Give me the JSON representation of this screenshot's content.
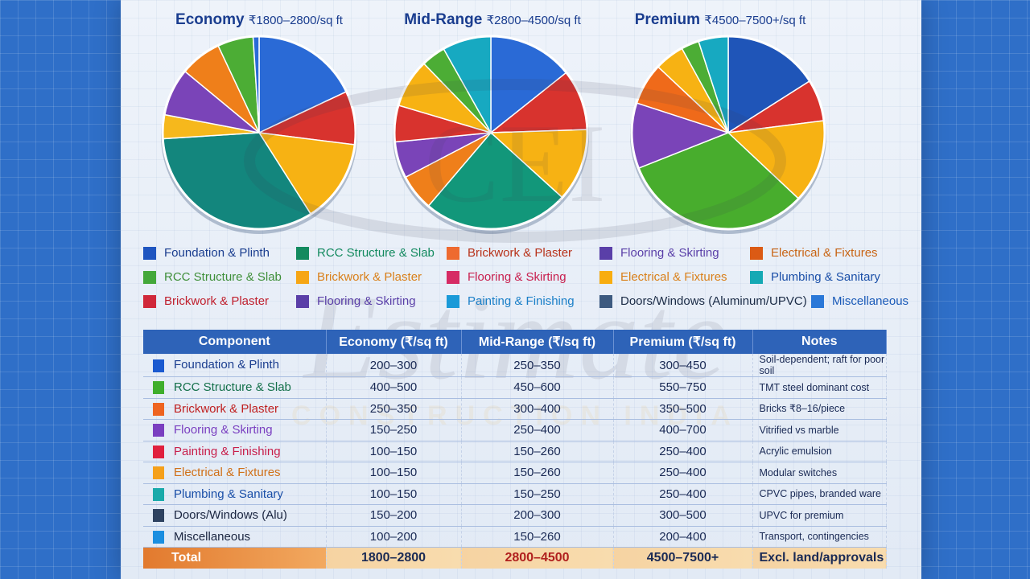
{
  "chart_data": [
    {
      "type": "pie",
      "title": "Economy",
      "subtitle": "₹1800–2800/sq ft",
      "slices": [
        {
          "value": 18,
          "color": "#2a6ad6"
        },
        {
          "value": 9,
          "color": "#d8332e"
        },
        {
          "value": 14,
          "color": "#f7b213"
        },
        {
          "value": 33,
          "color": "#13867d"
        },
        {
          "value": 4,
          "color": "#f6b81c"
        },
        {
          "value": 8,
          "color": "#7a44b8"
        },
        {
          "value": 7,
          "color": "#ef7f1a"
        },
        {
          "value": 6,
          "color": "#4cad35"
        },
        {
          "value": 1,
          "color": "#2a6ad6"
        }
      ]
    },
    {
      "type": "pie",
      "title": "Mid-Range",
      "subtitle": "₹2800–4500/sq ft",
      "slices": [
        {
          "value": 14,
          "color": "#2a6ad6"
        },
        {
          "value": 10,
          "color": "#d8332e"
        },
        {
          "value": 12,
          "color": "#f7b213"
        },
        {
          "value": 24,
          "color": "#12977a"
        },
        {
          "value": 6,
          "color": "#ef7f1a"
        },
        {
          "value": 6,
          "color": "#7a44b8"
        },
        {
          "value": 6,
          "color": "#d8332e"
        },
        {
          "value": 8,
          "color": "#f7b213"
        },
        {
          "value": 4,
          "color": "#4cad35"
        },
        {
          "value": 8,
          "color": "#17a9c1"
        }
      ]
    },
    {
      "type": "pie",
      "title": "Premium",
      "subtitle": "₹4500–7500+/sq ft",
      "slices": [
        {
          "value": 16,
          "color": "#1f55b8"
        },
        {
          "value": 7,
          "color": "#d8332e"
        },
        {
          "value": 14,
          "color": "#f7b213"
        },
        {
          "value": 32,
          "color": "#48ad2d"
        },
        {
          "value": 11,
          "color": "#7a44b8"
        },
        {
          "value": 7,
          "color": "#ef6a1a"
        },
        {
          "value": 5,
          "color": "#f7b213"
        },
        {
          "value": 3,
          "color": "#4cad35"
        },
        {
          "value": 5,
          "color": "#17a9c1"
        }
      ]
    }
  ],
  "legend": [
    {
      "label": "Foundation & Plinth",
      "color": "#1f55c0",
      "text": "#1a3d8f"
    },
    {
      "label": "RCC Structure & Slab",
      "color": "#138a5f",
      "text": "#138a5f"
    },
    {
      "label": "Brickwork & Plaster",
      "color": "#ee6a30",
      "text": "#b8321a"
    },
    {
      "label": "Flooring & Skirting",
      "color": "#5a3fa8",
      "text": "#5a3fa8"
    },
    {
      "label": "Electrical & Fixtures",
      "color": "#db5a14",
      "text": "#c86414"
    },
    {
      "label": "RCC Structure & Slab",
      "color": "#44a83a",
      "text": "#3f8f3a"
    },
    {
      "label": "Brickwork & Plaster",
      "color": "#f6a615",
      "text": "#d9801a"
    },
    {
      "label": "Flooring & Skirting",
      "color": "#d62b64",
      "text": "#c8204f"
    },
    {
      "label": "Electrical & Fixtures",
      "color": "#f8ad0f",
      "text": "#d9801a"
    },
    {
      "label": "Plumbing & Sanitary",
      "color": "#15a9b4",
      "text": "#1a4fa8"
    },
    {
      "label": "Brickwork & Plaster",
      "color": "#d0283a",
      "text": "#c0202e"
    },
    {
      "label": "Flooring & Skirting",
      "color": "#5a3fa8",
      "text": "#5a3fa8"
    },
    {
      "label": "Painting & Finishing",
      "color": "#1a9ad8",
      "text": "#1a7fc8"
    },
    {
      "label": "Doors/Windows (Aluminum/UPVC)",
      "color": "#3d5a80",
      "text": "#1a2a45"
    },
    {
      "label": "Miscellaneous",
      "color": "#2a78d8",
      "text": "#1a5ab8"
    }
  ],
  "table": {
    "headers": [
      "Component",
      "Economy (₹/sq ft)",
      "Mid-Range (₹/sq ft)",
      "Premium (₹/sq ft)",
      "Notes"
    ],
    "rows": [
      {
        "component": "Foundation & Plinth",
        "color": "#1a5ad0",
        "text": "#1a3d8f",
        "economy": "200–300",
        "mid": "250–350",
        "premium": "300–450",
        "notes": "Soil-dependent; raft for poor soil"
      },
      {
        "component": "RCC Structure & Slab",
        "color": "#3fae2c",
        "text": "#14704a",
        "economy": "400–500",
        "mid": "450–600",
        "premium": "550–750",
        "notes": "TMT steel dominant cost"
      },
      {
        "component": "Brickwork & Plaster",
        "color": "#ee6420",
        "text": "#c02020",
        "economy": "250–350",
        "mid": "300–400",
        "premium": "350–500",
        "notes": "Bricks ₹8–16/piece"
      },
      {
        "component": "Flooring & Skirting",
        "color": "#7a3fc0",
        "text": "#7a3fc0",
        "economy": "150–250",
        "mid": "250–400",
        "premium": "400–700",
        "notes": "Vitrified vs marble"
      },
      {
        "component": "Painting & Finishing",
        "color": "#e0203e",
        "text": "#c81e4a",
        "economy": "100–150",
        "mid": "150–260",
        "premium": "250–400",
        "notes": "Acrylic emulsion"
      },
      {
        "component": "Electrical & Fixtures",
        "color": "#f5a01a",
        "text": "#d07018",
        "economy": "100–150",
        "mid": "150–260",
        "premium": "250–400",
        "notes": "Modular switches"
      },
      {
        "component": "Plumbing & Sanitary",
        "color": "#1aaaaa",
        "text": "#1a4fa8",
        "economy": "100–150",
        "mid": "150–250",
        "premium": "250–400",
        "notes": "CPVC pipes, branded ware"
      },
      {
        "component": "Doors/Windows (Alu)",
        "color": "#2e4260",
        "text": "#1a2540",
        "economy": "150–200",
        "mid": "200–300",
        "premium": "300–500",
        "notes": "UPVC for premium"
      },
      {
        "component": "Miscellaneous",
        "color": "#1a8ee0",
        "text": "#1a2540",
        "economy": "100–200",
        "mid": "150–260",
        "premium": "200–400",
        "notes": "Transport, contingencies"
      }
    ],
    "total": {
      "component": "Total",
      "economy": "1800–2800",
      "mid": "2800–4500",
      "premium": "4500–7500+",
      "notes": "Excl. land/approvals",
      "mid_color": "#b0201e"
    }
  },
  "watermark": {
    "logo": "CEI",
    "script": "Estimate",
    "text": "CONSTRUCTION INDIA"
  }
}
